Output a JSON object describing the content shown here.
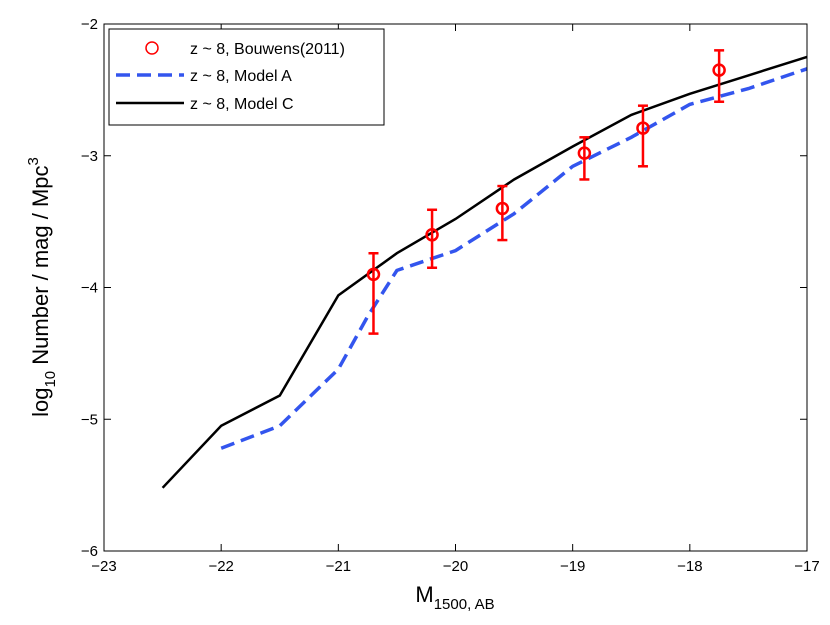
{
  "chart_data": {
    "type": "line",
    "title": "",
    "xlabel": {
      "main": "M",
      "sub": "1500, AB"
    },
    "ylabel": {
      "prefix": "log",
      "sub": "10",
      "main": " Number / mag / Mpc",
      "sup": "3"
    },
    "xlim": [
      -23,
      -17
    ],
    "ylim": [
      -6,
      -2
    ],
    "xticks": [
      -23,
      -22,
      -21,
      -20,
      -19,
      -18,
      -17
    ],
    "yticks": [
      -6,
      -5,
      -4,
      -3,
      -2
    ],
    "xtick_labels": [
      "−23",
      "−22",
      "−21",
      "−20",
      "−19",
      "−18",
      "−17"
    ],
    "ytick_labels": [
      "−6",
      "−5",
      "−4",
      "−3",
      "−2"
    ],
    "legend_position": "top-left",
    "series": [
      {
        "name": "z ~ 8, Bouwens(2011)",
        "kind": "points",
        "color": "#ff0000",
        "x": [
          -20.7,
          -20.2,
          -19.6,
          -18.9,
          -18.4,
          -17.75
        ],
        "y": [
          -3.9,
          -3.6,
          -3.4,
          -2.98,
          -2.79,
          -2.35
        ],
        "err_low": [
          0.45,
          0.25,
          0.24,
          0.2,
          0.29,
          0.24
        ],
        "err_high": [
          0.16,
          0.19,
          0.17,
          0.12,
          0.17,
          0.15
        ]
      },
      {
        "name": "z ~ 8, Model A",
        "kind": "dashed-line",
        "color": "#3355ee",
        "x": [
          -22.0,
          -21.5,
          -21.0,
          -20.75,
          -20.5,
          -20.0,
          -19.5,
          -19.0,
          -18.5,
          -18.0,
          -17.5,
          -17.0
        ],
        "y": [
          -5.22,
          -5.05,
          -4.62,
          -4.22,
          -3.87,
          -3.72,
          -3.44,
          -3.08,
          -2.86,
          -2.61,
          -2.49,
          -2.34
        ]
      },
      {
        "name": "z ~ 8, Model C",
        "kind": "solid-line",
        "color": "#000000",
        "x": [
          -22.5,
          -22.0,
          -21.5,
          -21.0,
          -20.5,
          -20.0,
          -19.5,
          -19.0,
          -18.5,
          -18.0,
          -17.5,
          -17.0
        ],
        "y": [
          -5.52,
          -5.05,
          -4.82,
          -4.06,
          -3.74,
          -3.48,
          -3.18,
          -2.93,
          -2.69,
          -2.53,
          -2.39,
          -2.25
        ]
      }
    ]
  }
}
